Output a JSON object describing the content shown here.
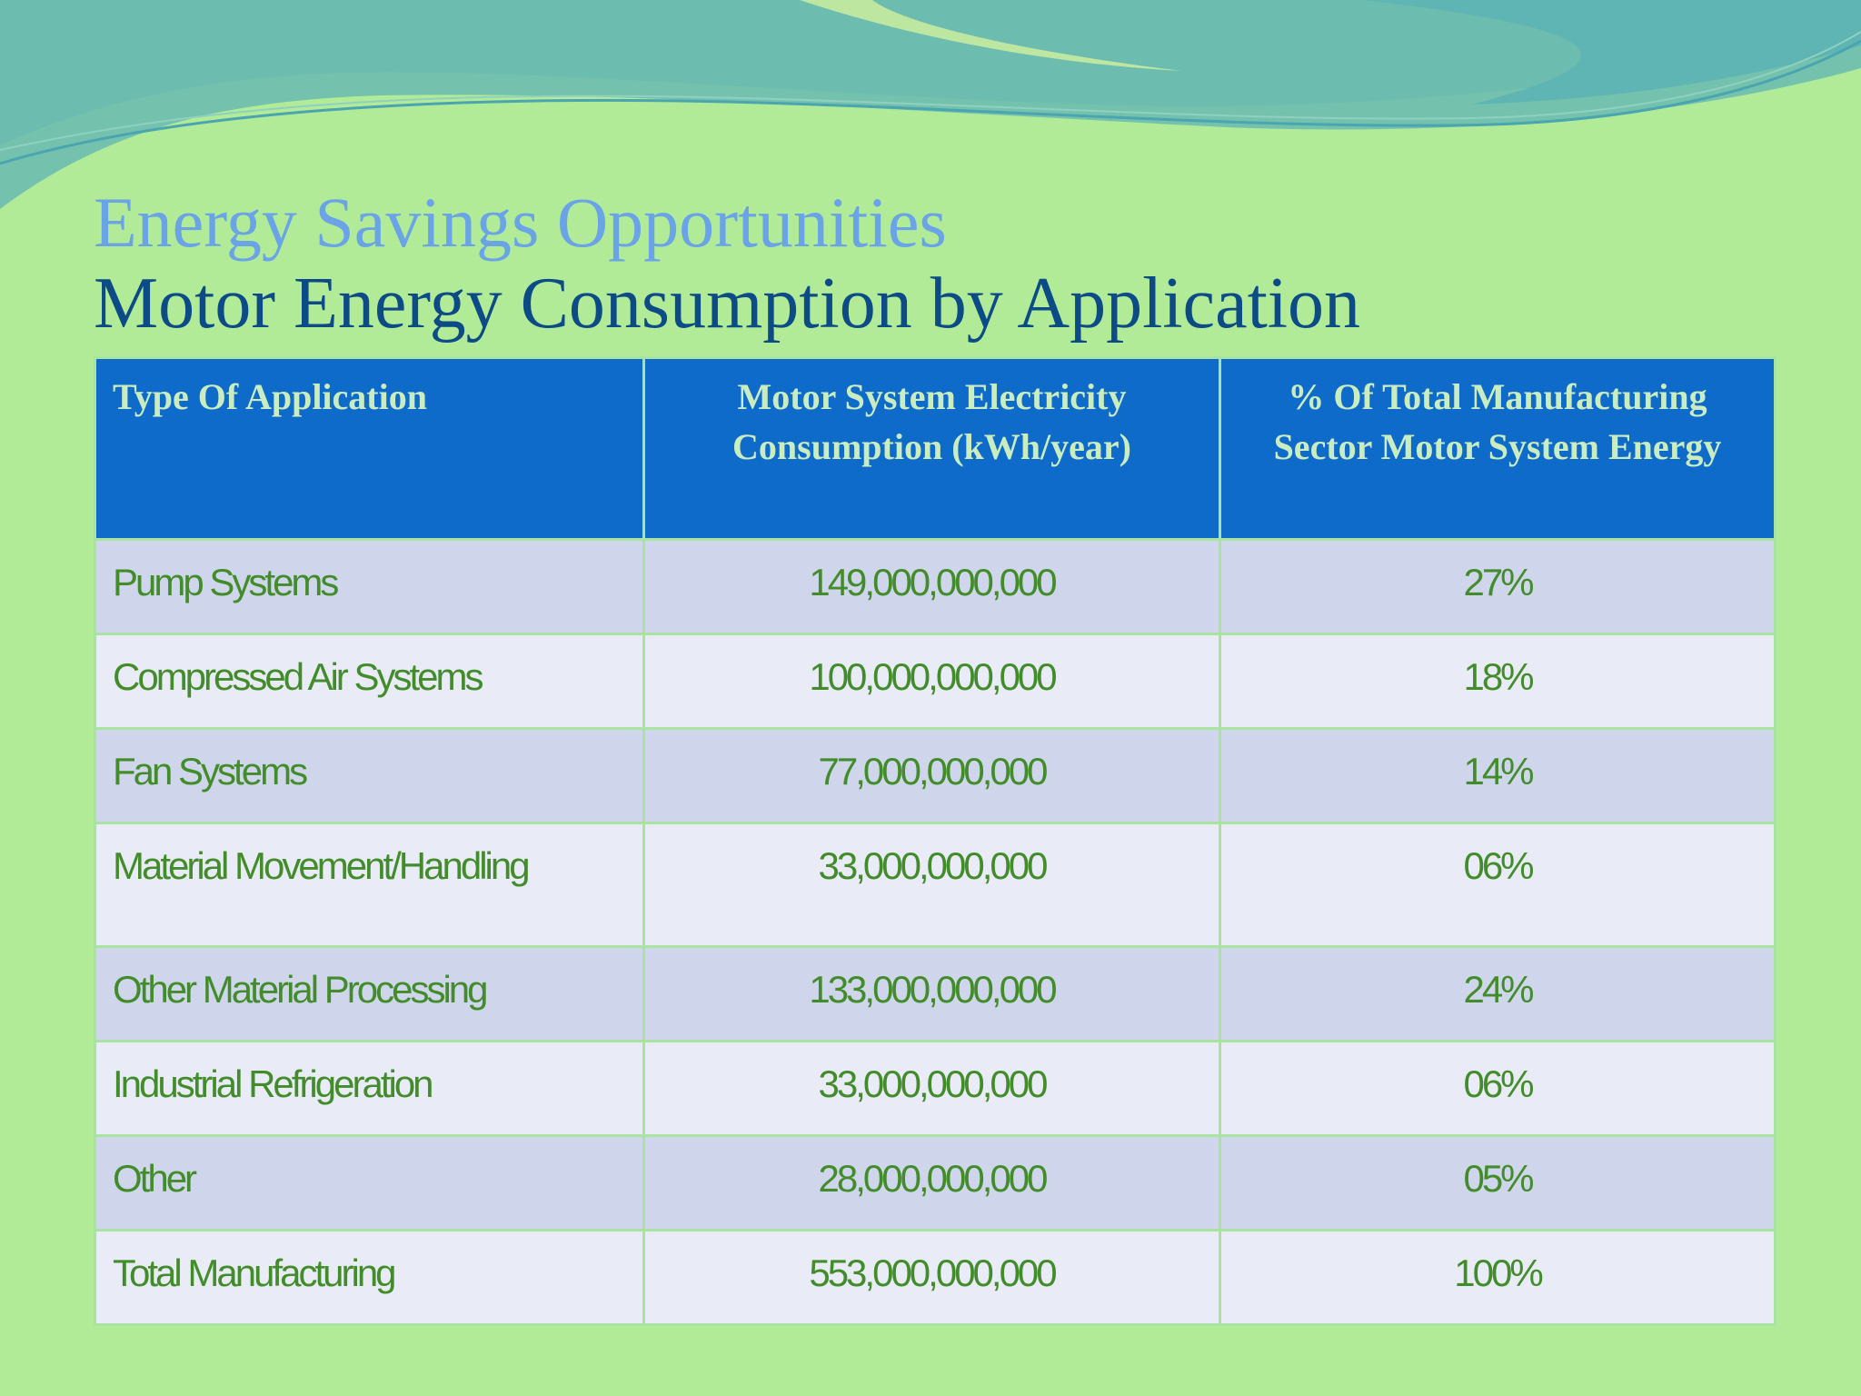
{
  "titles": {
    "heading": "Energy Savings Opportunities",
    "subheading": "Motor Energy Consumption by Application"
  },
  "table": {
    "headers": [
      "Type Of Application",
      "Motor System Electricity Consumption (kWh/year)",
      "%  Of Total Manufacturing Sector Motor System Energy"
    ],
    "rows": [
      [
        "Pump Systems",
        "149,000,000,000",
        "27%"
      ],
      [
        "Compressed Air Systems",
        "100,000,000,000",
        "18%"
      ],
      [
        "Fan Systems",
        "77,000,000,000",
        "14%"
      ],
      [
        "Material Movement/Handling",
        "33,000,000,000",
        "06%"
      ],
      [
        "Other Material Processing",
        "133,000,000,000",
        "24%"
      ],
      [
        "Industrial Refrigeration",
        "33,000,000,000",
        "06%"
      ],
      [
        "Other",
        "28,000,000,000",
        "05%"
      ],
      [
        "Total Manufacturing",
        "553,000,000,000",
        "100%"
      ]
    ]
  },
  "colors": {
    "background": "#b1eb97",
    "header_fill": "#0f6bc9",
    "header_text": "#c9ecc0",
    "cell_text": "#438c2c",
    "row_odd": "#cfd6eb",
    "row_even": "#e9ecf6",
    "heading": "#6aa3e6",
    "subheading": "#0c4b85"
  }
}
